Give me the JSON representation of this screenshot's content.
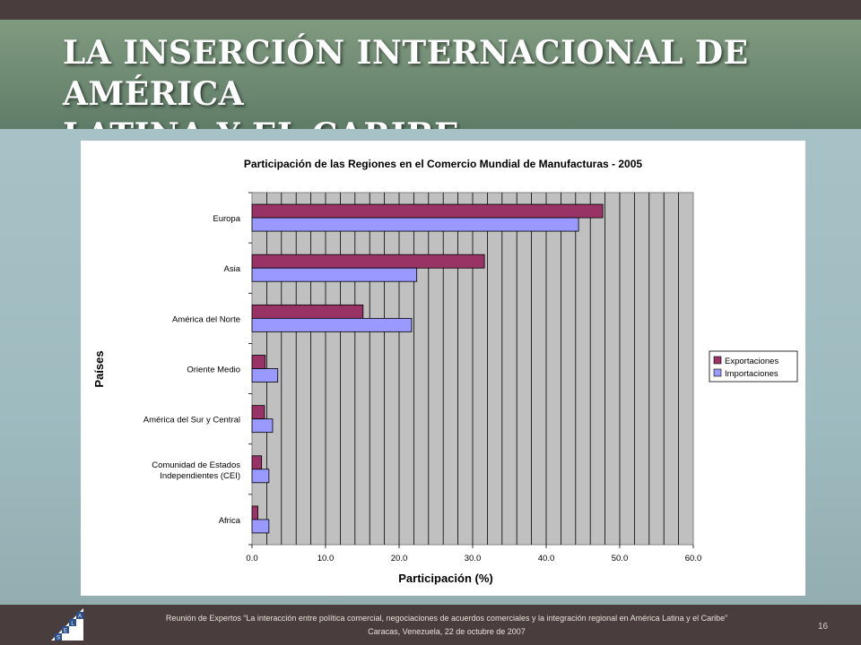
{
  "slide": {
    "title_line1": "LA INSERCIÓN INTERNACIONAL DE AMÉRICA",
    "title_line2": "LATINA Y EL CARIBE",
    "footer_line1": "Reunión de Expertos “La interacción entre política comercial, negociaciones de acuerdos comerciales y la integración regional en América Latina y el Caribe”",
    "footer_line2": "Caracas, Venezuela, 22 de octubre de 2007",
    "page_number": "16",
    "logo_letters": [
      "S",
      "E",
      "L",
      "A"
    ]
  },
  "chart_data": {
    "type": "bar",
    "orientation": "horizontal",
    "title": "Participación de las Regiones en el Comercio Mundial de Manufacturas - 2005",
    "xlabel": "Participación (%)",
    "ylabel": "Países",
    "xlim": [
      0,
      60
    ],
    "xticks": [
      "0.0",
      "10.0",
      "20.0",
      "30.0",
      "40.0",
      "50.0",
      "60.0"
    ],
    "categories": [
      "Europa",
      "Asia",
      "América del Norte",
      "Oriente Medio",
      "América del Sur y Central",
      "Comunidad de Estados Independientes (CEI)",
      "Africa"
    ],
    "category_lines": [
      [
        "Europa"
      ],
      [
        "Asia"
      ],
      [
        "América del Norte"
      ],
      [
        "Oriente Medio"
      ],
      [
        "América del Sur y Central"
      ],
      [
        "Comunidad de Estados",
        "Independientes (CEI)"
      ],
      [
        "Africa"
      ]
    ],
    "series": [
      {
        "name": "Exportaciones",
        "color": "#993366",
        "values": [
          47.7,
          31.6,
          15.1,
          1.8,
          1.7,
          1.3,
          0.8
        ]
      },
      {
        "name": "Importaciones",
        "color": "#9999ff",
        "values": [
          44.4,
          22.4,
          21.7,
          3.5,
          2.8,
          2.3,
          2.3
        ]
      }
    ],
    "plot_background": "#c0c0c0",
    "grid": true,
    "legend_position": "right"
  }
}
